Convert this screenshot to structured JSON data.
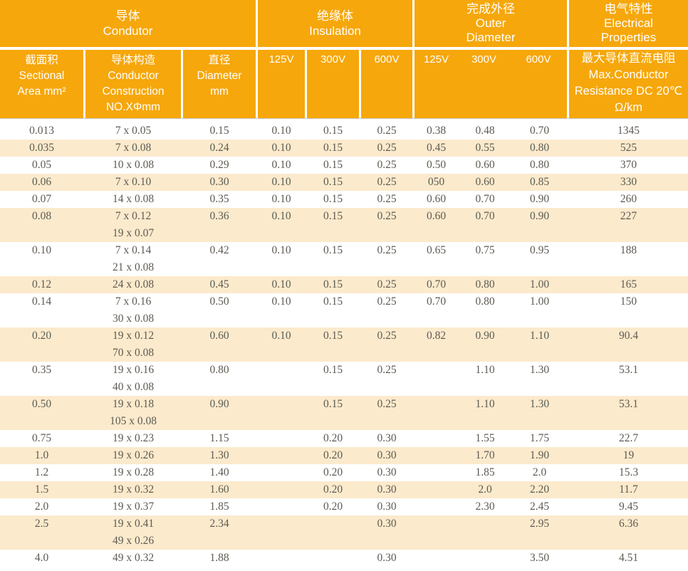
{
  "colors": {
    "header_orange": "#f6a70b",
    "stripe_cream": "#fbeacc",
    "data_text": "#5e5a52",
    "header_text": "#ffffff",
    "header_rule_gray": "#c8c8c8"
  },
  "table": {
    "groups": [
      {
        "label": "导体\nCondutor"
      },
      {
        "label": "绝缘体\nInsulation"
      },
      {
        "label": "完成外径\nOuter\nDiameter"
      },
      {
        "label": "电气特性\nElectrical\nProperties"
      }
    ],
    "sub": {
      "area": "截面积\nSectional\nArea mm²",
      "construction": "导体构造\nConductor\nConstruction\nNO.XΦmm",
      "diameter": "直径\nDiameter\nmm",
      "ins_125": "125V",
      "ins_300": "300V",
      "ins_600": "600V",
      "od_125": "125V",
      "od_300": "300V",
      "od_600": "600V",
      "resistance": "最大导体直流电阻\nMax.Conductor\nResistance DC 20℃\nΩ/km"
    },
    "columns": [
      "sectional_area_mm2",
      "conductor_construction",
      "diameter_mm",
      "insulation_125V",
      "insulation_300V",
      "insulation_600V",
      "outer_diameter_125V",
      "outer_diameter_300V",
      "outer_diameter_600V",
      "max_resistance_ohm_per_km"
    ],
    "rows": [
      {
        "cells": [
          "0.013",
          "7 x 0.05",
          "0.15",
          "0.10",
          "0.15",
          "0.25",
          "0.38",
          "0.48",
          "0.70",
          "1345"
        ]
      },
      {
        "cells": [
          "0.035",
          "7 x 0.08",
          "0.24",
          "0.10",
          "0.15",
          "0.25",
          "0.45",
          "0.55",
          "0.80",
          "525"
        ]
      },
      {
        "cells": [
          "0.05",
          "10 x 0.08",
          "0.29",
          "0.10",
          "0.15",
          "0.25",
          "0.50",
          "0.60",
          "0.80",
          "370"
        ]
      },
      {
        "cells": [
          "0.06",
          "7 x 0.10",
          "0.30",
          "0.10",
          "0.15",
          "0.25",
          "050",
          "0.60",
          "0.85",
          "330"
        ]
      },
      {
        "cells": [
          "0.07",
          "14 x 0.08",
          "0.35",
          "0.10",
          "0.15",
          "0.25",
          "0.60",
          "0.70",
          "0.90",
          "260"
        ]
      },
      {
        "cells": [
          "0.08",
          "7 x 0.12\n19 x 0.07",
          "0.36",
          "0.10",
          "0.15",
          "0.25",
          "0.60",
          "0.70",
          "0.90",
          "227"
        ]
      },
      {
        "cells": [
          "0.10",
          "7 x 0.14\n21 x 0.08",
          "0.42",
          "0.10",
          "0.15",
          "0.25",
          "0.65",
          "0.75",
          "0.95",
          "188"
        ]
      },
      {
        "cells": [
          "0.12",
          "24 x 0.08",
          "0.45",
          "0.10",
          "0.15",
          "0.25",
          "0.70",
          "0.80",
          "1.00",
          "165"
        ]
      },
      {
        "cells": [
          "0.14",
          "7 x 0.16\n30 x 0.08",
          "0.50",
          "0.10",
          "0.15",
          "0.25",
          "0.70",
          "0.80",
          "1.00",
          "150"
        ]
      },
      {
        "cells": [
          "0.20",
          "19 x 0.12\n70 x 0.08",
          "0.60",
          "0.10",
          "0.15",
          "0.25",
          "0.82",
          "0.90",
          "1.10",
          "90.4"
        ]
      },
      {
        "cells": [
          "0.35",
          "19 x 0.16\n40 x 0.08",
          "0.80",
          "",
          "0.15",
          "0.25",
          "",
          "1.10",
          "1.30",
          "53.1"
        ]
      },
      {
        "cells": [
          "0.50",
          "19 x 0.18\n105 x 0.08",
          "0.90",
          "",
          "0.15",
          "0.25",
          "",
          "1.10",
          "1.30",
          "53.1"
        ]
      },
      {
        "cells": [
          "0.75",
          "19 x 0.23",
          "1.15",
          "",
          "0.20",
          "0.30",
          "",
          "1.55",
          "1.75",
          "22.7"
        ]
      },
      {
        "cells": [
          "1.0",
          "19 x 0.26",
          "1.30",
          "",
          "0.20",
          "0.30",
          "",
          "1.70",
          "1.90",
          "19"
        ]
      },
      {
        "cells": [
          "1.2",
          "19 x 0.28",
          "1.40",
          "",
          "0.20",
          "0.30",
          "",
          "1.85",
          "2.0",
          "15.3"
        ]
      },
      {
        "cells": [
          "1.5",
          "19 x 0.32",
          "1.60",
          "",
          "0.20",
          "0.30",
          "",
          "2.0",
          "2.20",
          "11.7"
        ]
      },
      {
        "cells": [
          "2.0",
          "19 x 0.37",
          "1.85",
          "",
          "0.20",
          "0.30",
          "",
          "2.30",
          "2.45",
          "9.45"
        ]
      },
      {
        "cells": [
          "2.5",
          "19 x 0.41\n49 x 0.26",
          "2.34",
          "",
          "",
          "0.30",
          "",
          "",
          "2.95",
          "6.36"
        ]
      },
      {
        "cells": [
          "4.0",
          "49 x 0.32",
          "1.88",
          "",
          "",
          "0.30",
          "",
          "",
          "3.50",
          "4.51"
        ]
      }
    ]
  }
}
